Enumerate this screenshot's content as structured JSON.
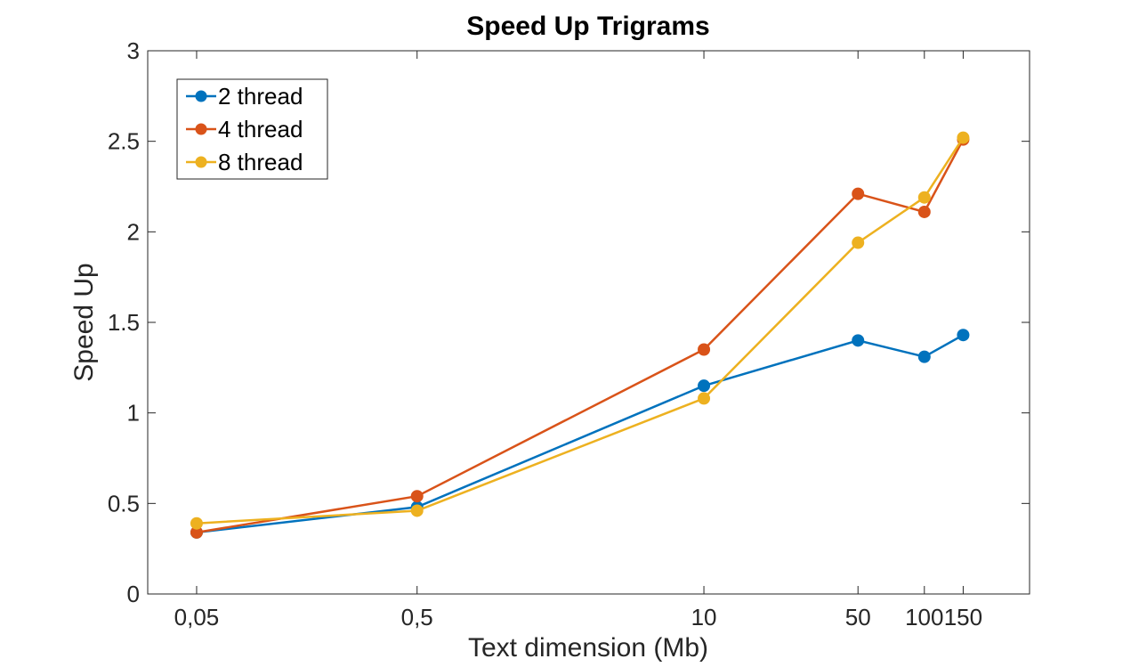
{
  "chart_data": {
    "type": "line",
    "title": "Speed Up Trigrams",
    "xlabel": "Text dimension (Mb)",
    "ylabel": "Speed Up",
    "x_ticks": [
      "0,05",
      "0,5",
      "10",
      "50",
      "100",
      "150"
    ],
    "x_scale": "log",
    "x": [
      0.05,
      0.5,
      10,
      50,
      100,
      150
    ],
    "xlim": [
      0.03,
      300
    ],
    "ylim": [
      0,
      3
    ],
    "y_ticks": [
      "0",
      "0.5",
      "1",
      "1.5",
      "2",
      "2.5",
      "3"
    ],
    "grid": false,
    "legend_position": "top-left",
    "series": [
      {
        "name": "2 thread",
        "color": "#0072BD",
        "values": [
          0.34,
          0.48,
          1.15,
          1.4,
          1.31,
          1.43
        ]
      },
      {
        "name": "4 thread",
        "color": "#D95319",
        "values": [
          0.34,
          0.54,
          1.35,
          2.21,
          2.11,
          2.51
        ]
      },
      {
        "name": "8 thread",
        "color": "#EDB120",
        "values": [
          0.39,
          0.46,
          1.08,
          1.94,
          2.19,
          2.52
        ]
      }
    ]
  }
}
